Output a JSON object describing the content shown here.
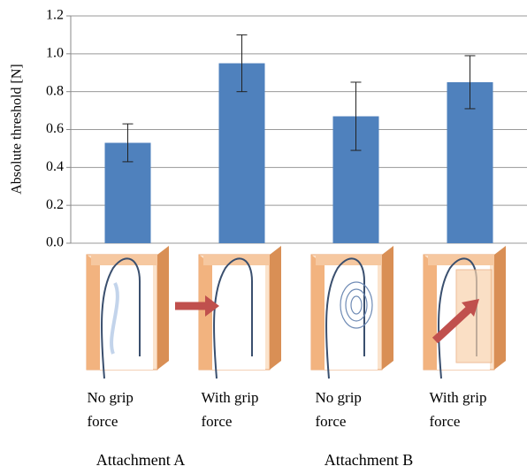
{
  "chart_data": {
    "type": "bar",
    "y_label": "Absolute threshold [N]",
    "categories": [
      "No grip force",
      "With grip force",
      "No grip force",
      "With grip force"
    ],
    "groups": [
      "Attachment A",
      "Attachment B"
    ],
    "values": [
      0.53,
      0.95,
      0.67,
      0.85
    ],
    "errors": [
      0.1,
      0.15,
      0.18,
      0.14
    ],
    "color": "#4f81bd",
    "ylim": [
      0,
      1.2
    ],
    "yticks": [
      {
        "value": 0,
        "label": "0.0"
      },
      0.2,
      0.4,
      0.6,
      0.8,
      {
        "value": 1,
        "label": "1.0"
      },
      1.2
    ],
    "grid": true
  }
}
